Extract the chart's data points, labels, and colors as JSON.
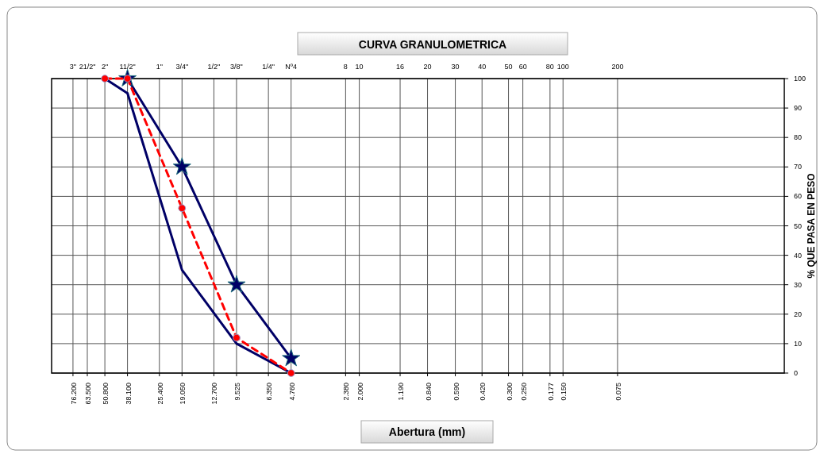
{
  "chart_data": {
    "type": "line",
    "title": "CURVA GRANULOMETRICA",
    "xlabel": "Abertura (mm)",
    "ylabel": "% QUE PASA EN PESO",
    "log": "x",
    "grid": true,
    "xlim": [
      100,
      0.009
    ],
    "xticks": [
      {
        "value": 76.2,
        "label": "76.200"
      },
      {
        "value": 63.5,
        "label": "63.500"
      },
      {
        "value": 50.8,
        "label": "50.800"
      },
      {
        "value": 38.1,
        "label": "38.100"
      },
      {
        "value": 25.4,
        "label": "25.400"
      },
      {
        "value": 19.05,
        "label": "19.050"
      },
      {
        "value": 12.7,
        "label": "12.700"
      },
      {
        "value": 9.525,
        "label": "9.525"
      },
      {
        "value": 6.35,
        "label": "6.350"
      },
      {
        "value": 4.76,
        "label": "4.760"
      },
      {
        "value": 2.38,
        "label": "2.380"
      },
      {
        "value": 2.0,
        "label": "2.000"
      },
      {
        "value": 1.19,
        "label": "1.190"
      },
      {
        "value": 0.84,
        "label": "0.840"
      },
      {
        "value": 0.59,
        "label": "0.590"
      },
      {
        "value": 0.42,
        "label": "0.420"
      },
      {
        "value": 0.3,
        "label": "0.300"
      },
      {
        "value": 0.25,
        "label": "0.250"
      },
      {
        "value": 0.177,
        "label": "0.177"
      },
      {
        "value": 0.15,
        "label": "0.150"
      },
      {
        "value": 0.075,
        "label": "0.075"
      }
    ],
    "annotations": [
      "3\"",
      "21/2\"",
      "2\"",
      "11/2\"",
      "1\"",
      "3/4\"",
      "1/2\"",
      "3/8\"",
      "1/4\"",
      "Nº4",
      "8",
      "10",
      "16",
      "20",
      "30",
      "40",
      "50",
      "60",
      "80",
      "100",
      "200"
    ],
    "ylim": [
      0,
      100
    ],
    "yticks": [
      0,
      10,
      20,
      30,
      40,
      50,
      60,
      70,
      80,
      90,
      100
    ],
    "series": [
      {
        "color": "#000066",
        "x": [
          50.8,
          38.1,
          19.05,
          9.525,
          4.76
        ],
        "values": [
          100,
          95,
          35,
          10,
          0
        ],
        "marker": "none",
        "line_style": "solid"
      },
      {
        "color": "#000066",
        "x": [
          38.1,
          19.05,
          9.525,
          4.76
        ],
        "values": [
          100,
          70,
          30,
          5
        ],
        "marker": "star",
        "line_style": "solid"
      },
      {
        "color": "#ff0000",
        "x": [
          50.8,
          38.1,
          19.05,
          9.525,
          4.76
        ],
        "values": [
          100,
          100,
          56,
          12,
          0
        ],
        "marker": "circle",
        "line_style": "dashed"
      }
    ]
  }
}
